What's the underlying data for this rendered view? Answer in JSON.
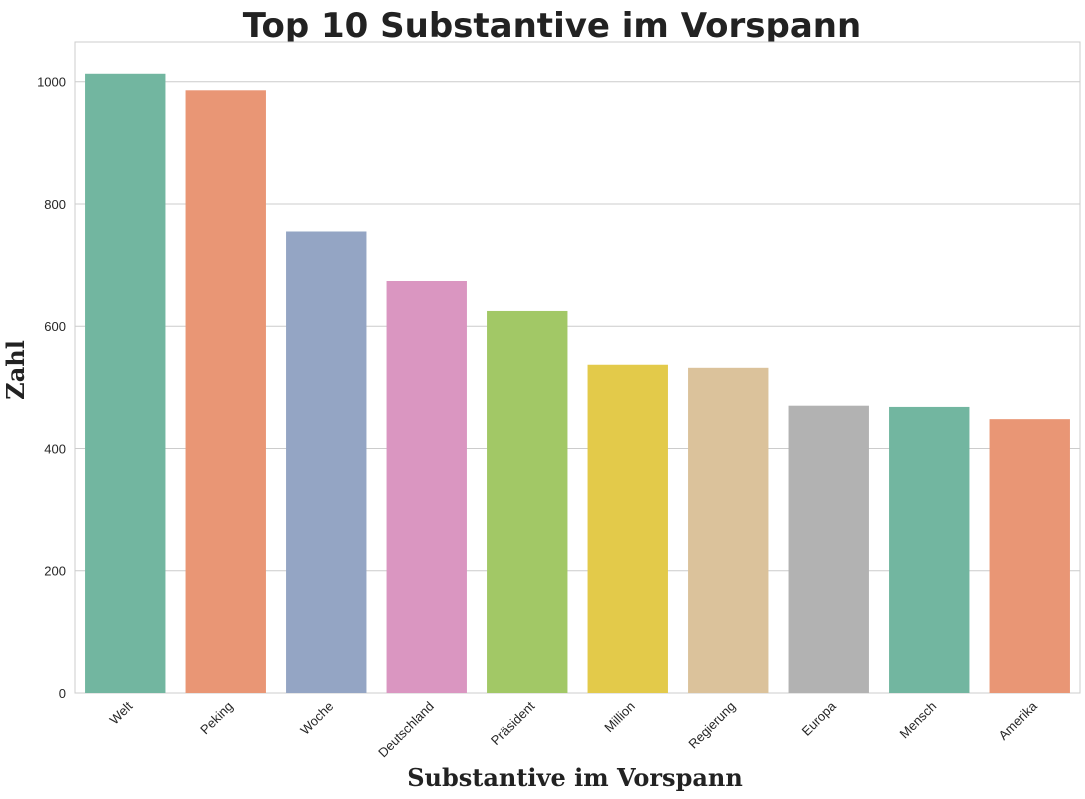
{
  "chart_data": {
    "type": "bar",
    "title": "Top 10 Substantive im Vorspann",
    "xlabel": "Substantive im Vorspann",
    "ylabel": "Zahl",
    "categories": [
      "Welt",
      "Peking",
      "Woche",
      "Deutschland",
      "Präsident",
      "Million",
      "Regierung",
      "Europa",
      "Mensch",
      "Amerika"
    ],
    "values": [
      1013,
      986,
      755,
      674,
      625,
      537,
      532,
      470,
      468,
      448
    ],
    "colors": [
      "#72b6a0",
      "#e99675",
      "#94a5c4",
      "#da96c1",
      "#a2c866",
      "#e3ca4a",
      "#dbc29b",
      "#b2b2b2",
      "#72b6a0",
      "#e99675"
    ],
    "ylim": [
      0,
      1065
    ],
    "yticks": [
      0,
      200,
      400,
      600,
      800,
      1000
    ],
    "grid": "horizontal",
    "legend": "none"
  }
}
